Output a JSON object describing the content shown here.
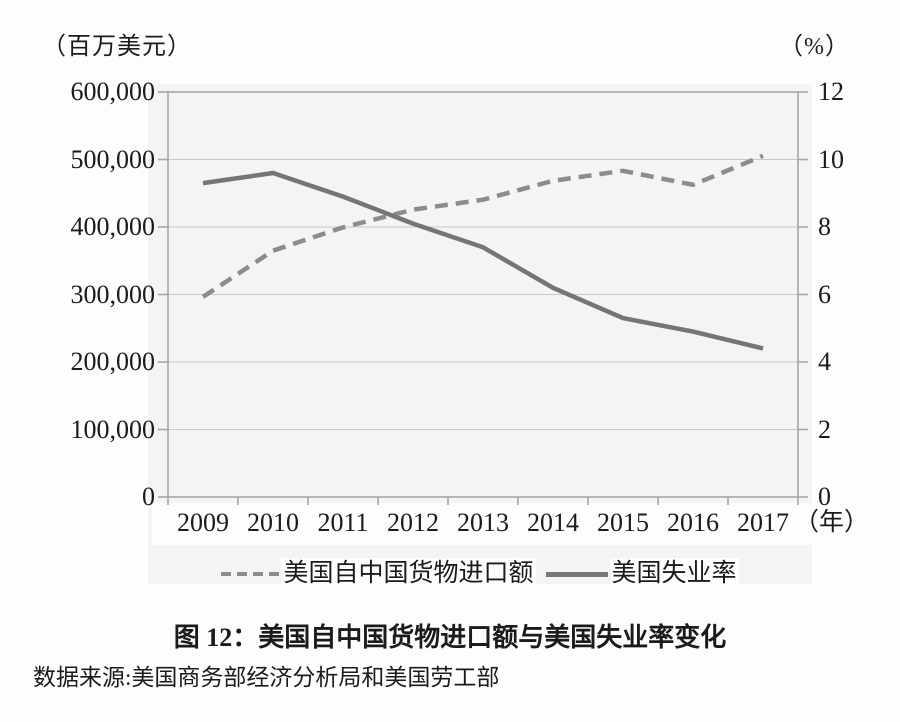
{
  "caption": "图 12：美国自中国货物进口额与美国失业率变化",
  "source": "数据来源:美国商务部经济分析局和美国劳工部",
  "colors": {
    "import_line": "#8c8c8c",
    "unemployment_line": "#757575",
    "grid_line": "#c9c9c9",
    "axis_line": "#a6a6a6",
    "chart_background": "#f4f4f4",
    "text": "#1b1b1b"
  },
  "chart_data": {
    "type": "line",
    "title": "图 12：美国自中国货物进口额与美国失业率变化",
    "categories": [
      "2009",
      "2010",
      "2011",
      "2012",
      "2013",
      "2014",
      "2015",
      "2016",
      "2017"
    ],
    "series": [
      {
        "name": "美国自中国货物进口额",
        "axis": "left",
        "line_style": "dashed",
        "color": "#8c8c8c",
        "values": [
          296374,
          364953,
          399371,
          425619,
          440430,
          468475,
          483202,
          462542,
          505470
        ]
      },
      {
        "name": "美国失业率",
        "axis": "right",
        "line_style": "solid",
        "color": "#757575",
        "values": [
          9.3,
          9.6,
          8.9,
          8.1,
          7.4,
          6.2,
          5.3,
          4.9,
          4.4
        ]
      }
    ],
    "left_axis": {
      "unit": "（百万美元）",
      "min": 0,
      "max": 600000,
      "step": 100000,
      "tick_labels": [
        "600,000",
        "500,000",
        "400,000",
        "300,000",
        "200,000",
        "100,000",
        "0"
      ]
    },
    "right_axis": {
      "unit": "（%）",
      "min": 0,
      "max": 12,
      "step": 2,
      "tick_labels": [
        "12",
        "10",
        "8",
        "6",
        "4",
        "2",
        "0"
      ]
    },
    "x_axis": {
      "unit": "（年）",
      "tick_labels": [
        "2009",
        "2010",
        "2011",
        "2012",
        "2013",
        "2014",
        "2015",
        "2016",
        "2017"
      ]
    },
    "grid": true,
    "legend_position": "bottom"
  }
}
